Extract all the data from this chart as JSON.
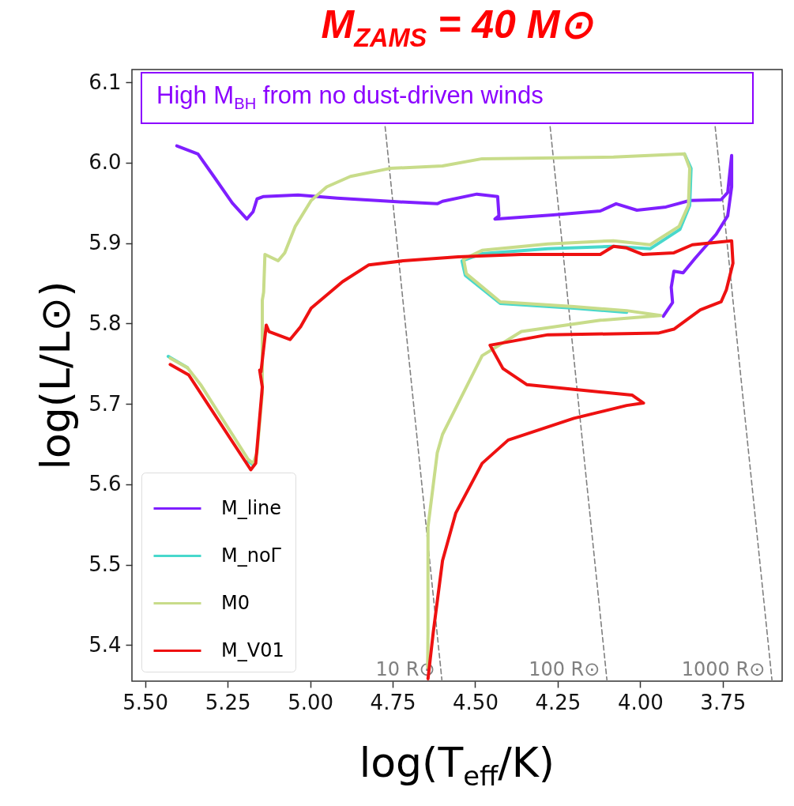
{
  "chart_data": {
    "type": "line",
    "title": "M$_{ZAMS}$ = 40 M⊙",
    "xlabel": "log(T$_{eff}$/K)",
    "ylabel": "log(L/L⊙)",
    "annotations": [
      "High M$_{BH}$ from no dust-driven winds"
    ],
    "xlim": [
      5.54,
      3.57
    ],
    "ylim": [
      5.355,
      6.116
    ],
    "xticks": [
      {
        "value": 5.5,
        "label": "5.50"
      },
      {
        "value": 5.25,
        "label": "5.25"
      },
      {
        "value": 5.0,
        "label": "5.00"
      },
      {
        "value": 4.75,
        "label": "4.75"
      },
      {
        "value": 4.5,
        "label": "4.50"
      },
      {
        "value": 4.25,
        "label": "4.25"
      },
      {
        "value": 4.0,
        "label": "4.00"
      },
      {
        "value": 3.75,
        "label": "3.75"
      }
    ],
    "yticks": [
      {
        "value": 5.4,
        "label": "5.4"
      },
      {
        "value": 5.5,
        "label": "5.5"
      },
      {
        "value": 5.6,
        "label": "5.6"
      },
      {
        "value": 5.7,
        "label": "5.7"
      },
      {
        "value": 5.8,
        "label": "5.8"
      },
      {
        "value": 5.9,
        "label": "5.9"
      },
      {
        "value": 6.0,
        "label": "6.0"
      },
      {
        "value": 6.1,
        "label": "6.1"
      }
    ],
    "legend": "bottom left",
    "series": [
      {
        "name": "10 R⊙",
        "color": "#808080",
        "line_style": "dashed",
        "x": [
          4.773,
          4.6005
        ],
        "values": [
          6.045,
          5.355
        ]
      },
      {
        "name": "100 R⊙",
        "color": "#808080",
        "line_style": "dashed",
        "x": [
          4.273,
          4.1005
        ],
        "values": [
          6.045,
          5.355
        ]
      },
      {
        "name": "1000 R⊙",
        "color": "#808080",
        "line_style": "dashed",
        "x": [
          3.773,
          3.6005
        ],
        "values": [
          6.045,
          5.355
        ]
      },
      {
        "name": "M_line",
        "color": "#7f1fff",
        "x": [
          5.404,
          5.34,
          5.292,
          5.236,
          5.192,
          5.173,
          5.161,
          5.141,
          5.037,
          4.918,
          4.758,
          4.615,
          4.599,
          4.495,
          4.432,
          4.428,
          4.44,
          4.264,
          4.121,
          4.073,
          4.01,
          3.922,
          3.85,
          3.755,
          3.735,
          3.723,
          3.723,
          3.735,
          3.77,
          3.834,
          3.87,
          3.898,
          3.906,
          3.902,
          3.93
        ],
        "values": [
          6.021,
          6.011,
          5.983,
          5.95,
          5.93,
          5.939,
          5.955,
          5.958,
          5.96,
          5.956,
          5.952,
          5.949,
          5.952,
          5.961,
          5.958,
          5.934,
          5.93,
          5.935,
          5.94,
          5.949,
          5.941,
          5.945,
          5.953,
          5.954,
          5.963,
          6.009,
          5.97,
          5.934,
          5.911,
          5.881,
          5.863,
          5.865,
          5.845,
          5.826,
          5.809
        ]
      },
      {
        "name": "M_noΓ",
        "color": "#48d8cc",
        "x": [
          5.43,
          5.372,
          null,
          5.188,
          5.173,
          null,
          null,
          null,
          null,
          null,
          null,
          null,
          null,
          null,
          null,
          null,
          null,
          null,
          null,
          null,
          3.866,
          3.846,
          3.85,
          3.88,
          3.97,
          4.081,
          4.28,
          4.479,
          4.54,
          4.53,
          4.424,
          4.201,
          4.041,
          null,
          null,
          null,
          null,
          null,
          null,
          null,
          null,
          null
        ],
        "values": [
          5.759,
          5.745,
          null,
          5.629,
          5.624,
          null,
          null,
          null,
          null,
          null,
          null,
          null,
          null,
          null,
          null,
          null,
          null,
          null,
          null,
          null,
          6.011,
          5.993,
          5.947,
          5.917,
          5.893,
          5.896,
          5.893,
          5.887,
          5.878,
          5.86,
          5.825,
          5.819,
          5.814,
          null,
          null,
          null,
          null,
          null,
          null,
          null,
          null,
          null
        ]
      },
      {
        "name": "M0",
        "color": "#c8dc8a",
        "x": [
          5.424,
          5.372,
          5.332,
          5.188,
          5.173,
          5.161,
          5.145,
          5.145,
          5.141,
          5.137,
          5.097,
          5.077,
          5.045,
          4.997,
          4.95,
          4.878,
          4.758,
          4.599,
          4.479,
          4.081,
          3.866,
          3.85,
          3.854,
          3.882,
          3.97,
          4.081,
          4.28,
          4.479,
          4.535,
          4.527,
          4.424,
          4.201,
          4.041,
          3.938,
          4.121,
          4.36,
          4.479,
          4.599,
          4.615,
          4.643,
          4.643,
          4.644
        ],
        "values": [
          5.757,
          5.745,
          5.724,
          5.631,
          5.626,
          5.639,
          5.714,
          5.829,
          5.839,
          5.886,
          5.878,
          5.888,
          5.921,
          5.953,
          5.97,
          5.983,
          5.993,
          5.996,
          6.005,
          6.007,
          6.011,
          5.993,
          5.947,
          5.921,
          5.898,
          5.903,
          5.899,
          5.891,
          5.88,
          5.862,
          5.827,
          5.821,
          5.816,
          5.81,
          5.804,
          5.79,
          5.76,
          5.662,
          5.639,
          5.547,
          5.416,
          5.372
        ]
      },
      {
        "name": "M_V01",
        "color": "#ee1111",
        "x": [
          5.424,
          5.368,
          5.18,
          5.165,
          5.145,
          5.153,
          5.149,
          5.133,
          5.125,
          5.061,
          5.029,
          4.997,
          4.902,
          4.822,
          4.718,
          4.551,
          4.36,
          4.121,
          4.081,
          4.041,
          3.993,
          3.898,
          3.842,
          3.723,
          3.719,
          3.739,
          3.755,
          3.818,
          3.898,
          3.946,
          4.28,
          4.455,
          4.416,
          4.344,
          4.201,
          4.025,
          3.99,
          4.041,
          4.201,
          4.4,
          4.479,
          4.559,
          4.599,
          4.627,
          4.643
        ],
        "values": [
          5.749,
          5.736,
          5.618,
          5.626,
          5.721,
          5.742,
          5.74,
          5.798,
          5.79,
          5.78,
          5.796,
          5.819,
          5.852,
          5.873,
          5.878,
          5.883,
          5.886,
          5.886,
          5.896,
          5.894,
          5.886,
          5.888,
          5.898,
          5.903,
          5.875,
          5.842,
          5.827,
          5.817,
          5.793,
          5.788,
          5.786,
          5.773,
          5.744,
          5.724,
          5.718,
          5.711,
          5.701,
          5.698,
          5.682,
          5.655,
          5.626,
          5.564,
          5.505,
          5.416,
          5.358
        ]
      }
    ]
  }
}
